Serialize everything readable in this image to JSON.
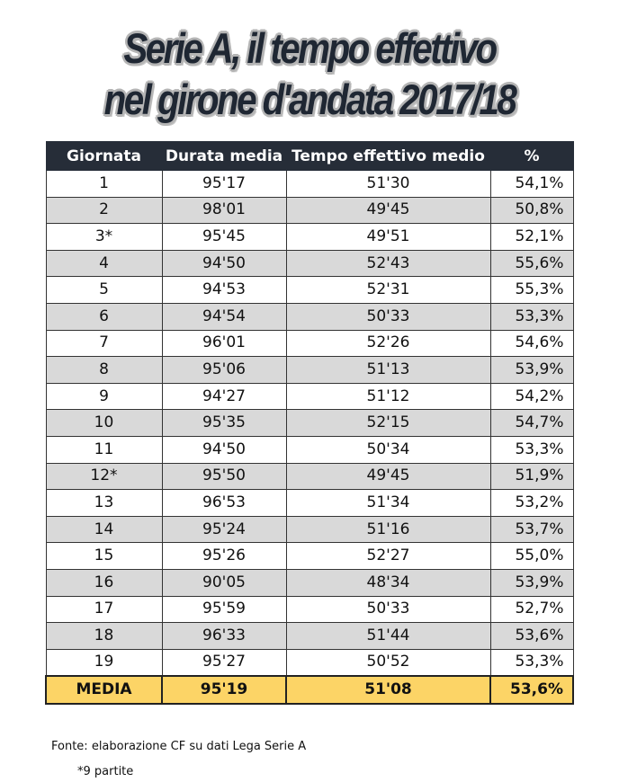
{
  "title": {
    "line1": "Serie A, il tempo effettivo",
    "line2": "nel girone d'andata 2017/18"
  },
  "table": {
    "headers": [
      "Giornata",
      "Durata media",
      "Tempo effettivo medio",
      "%"
    ],
    "rows": [
      {
        "giornata": "1",
        "durata": "95'17",
        "tempo": "51'30",
        "pct": "54,1%"
      },
      {
        "giornata": "2",
        "durata": "98'01",
        "tempo": "49'45",
        "pct": "50,8%"
      },
      {
        "giornata": "3*",
        "durata": "95'45",
        "tempo": "49'51",
        "pct": "52,1%"
      },
      {
        "giornata": "4",
        "durata": "94'50",
        "tempo": "52'43",
        "pct": "55,6%"
      },
      {
        "giornata": "5",
        "durata": "94'53",
        "tempo": "52'31",
        "pct": "55,3%"
      },
      {
        "giornata": "6",
        "durata": "94'54",
        "tempo": "50'33",
        "pct": "53,3%"
      },
      {
        "giornata": "7",
        "durata": "96'01",
        "tempo": "52'26",
        "pct": "54,6%"
      },
      {
        "giornata": "8",
        "durata": "95'06",
        "tempo": "51'13",
        "pct": "53,9%"
      },
      {
        "giornata": "9",
        "durata": "94'27",
        "tempo": "51'12",
        "pct": "54,2%"
      },
      {
        "giornata": "10",
        "durata": "95'35",
        "tempo": "52'15",
        "pct": "54,7%"
      },
      {
        "giornata": "11",
        "durata": "94'50",
        "tempo": "50'34",
        "pct": "53,3%"
      },
      {
        "giornata": "12*",
        "durata": "95'50",
        "tempo": "49'45",
        "pct": "51,9%"
      },
      {
        "giornata": "13",
        "durata": "96'53",
        "tempo": "51'34",
        "pct": "53,2%"
      },
      {
        "giornata": "14",
        "durata": "95'24",
        "tempo": "51'16",
        "pct": "53,7%"
      },
      {
        "giornata": "15",
        "durata": "95'26",
        "tempo": "52'27",
        "pct": "55,0%"
      },
      {
        "giornata": "16",
        "durata": "90'05",
        "tempo": "48'34",
        "pct": "53,9%"
      },
      {
        "giornata": "17",
        "durata": "95'59",
        "tempo": "50'33",
        "pct": "52,7%"
      },
      {
        "giornata": "18",
        "durata": "96'33",
        "tempo": "51'44",
        "pct": "53,6%"
      },
      {
        "giornata": "19",
        "durata": "95'27",
        "tempo": "50'52",
        "pct": "53,3%"
      }
    ],
    "media": {
      "giornata": "MEDIA",
      "durata": "95'19",
      "tempo": "51'08",
      "pct": "53,6%"
    }
  },
  "colors": {
    "header_bg": "#262d38",
    "stripe": "#d9d9d9",
    "media_bg": "#fcd466",
    "title": "#1f2733"
  },
  "footer": {
    "source": "Fonte: elaborazione CF su dati Lega Serie A",
    "note": "*9 partite"
  }
}
